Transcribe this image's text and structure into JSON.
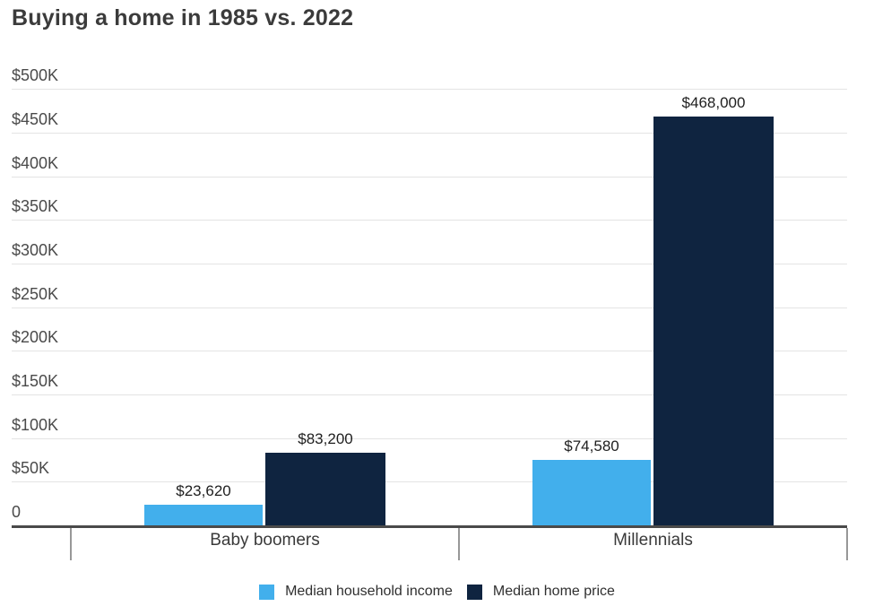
{
  "chart_data": {
    "type": "bar",
    "title": "Buying a home in 1985 vs. 2022",
    "categories": [
      "Baby boomers",
      "Millennials"
    ],
    "series": [
      {
        "name": "Median household income",
        "color": "#42AFEC",
        "values": [
          23620,
          74580
        ],
        "value_labels": [
          "$23,620",
          "$74,580"
        ]
      },
      {
        "name": "Median home price",
        "color": "#0F2440",
        "values": [
          83200,
          468000
        ],
        "value_labels": [
          "$83,200",
          "$468,000"
        ]
      }
    ],
    "xlabel": "",
    "ylabel": "",
    "ylim": [
      0,
      500000
    ],
    "ytick_interval": 50000,
    "yticks": [
      {
        "value": 500000,
        "label": "$500K"
      },
      {
        "value": 450000,
        "label": "$450K"
      },
      {
        "value": 400000,
        "label": "$400K"
      },
      {
        "value": 350000,
        "label": "$350K"
      },
      {
        "value": 300000,
        "label": "$300K"
      },
      {
        "value": 250000,
        "label": "$250K"
      },
      {
        "value": 200000,
        "label": "$200K"
      },
      {
        "value": 150000,
        "label": "$150K"
      },
      {
        "value": 100000,
        "label": "$100K"
      },
      {
        "value": 50000,
        "label": "$50K"
      },
      {
        "value": 0,
        "label": "0"
      }
    ],
    "grid": true,
    "legend_position": "bottom"
  }
}
